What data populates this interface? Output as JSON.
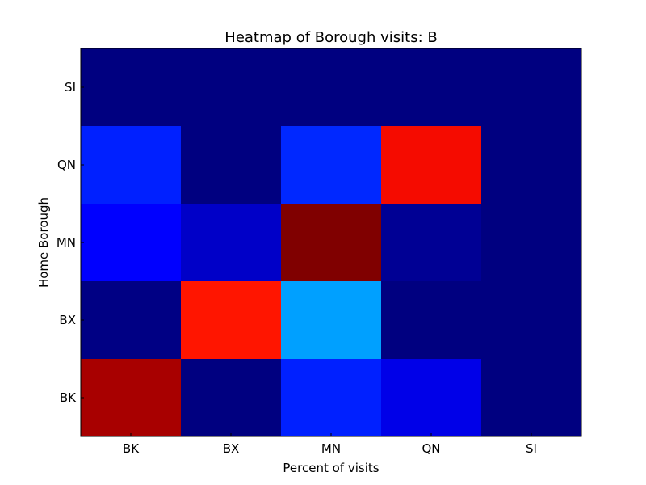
{
  "chart_data": {
    "type": "heatmap",
    "title": "Heatmap of Borough visits: B",
    "xlabel": "Percent of visits",
    "ylabel": "Home Borough",
    "x_categories": [
      "BK",
      "BX",
      "MN",
      "QN",
      "SI"
    ],
    "y_categories": [
      "BK",
      "BX",
      "MN",
      "QN",
      "SI"
    ],
    "colormap": "jet",
    "grid": false,
    "legend": "none",
    "cells": [
      {
        "row": "BK",
        "col": "BK",
        "value": 0.91,
        "color": "#a80000"
      },
      {
        "row": "BK",
        "col": "BX",
        "value": 0.0,
        "color": "#000080"
      },
      {
        "row": "BK",
        "col": "MN",
        "value": 0.24,
        "color": "#0020ff"
      },
      {
        "row": "BK",
        "col": "QN",
        "value": 0.17,
        "color": "#0000e8"
      },
      {
        "row": "BK",
        "col": "SI",
        "value": 0.0,
        "color": "#000080"
      },
      {
        "row": "BX",
        "col": "BK",
        "value": 0.01,
        "color": "#000084"
      },
      {
        "row": "BX",
        "col": "BX",
        "value": 0.79,
        "color": "#ff1500"
      },
      {
        "row": "BX",
        "col": "MN",
        "value": 0.34,
        "color": "#00a0ff"
      },
      {
        "row": "BX",
        "col": "QN",
        "value": 0.0,
        "color": "#000080"
      },
      {
        "row": "BX",
        "col": "SI",
        "value": 0.0,
        "color": "#000080"
      },
      {
        "row": "MN",
        "col": "BK",
        "value": 0.22,
        "color": "#0000ff"
      },
      {
        "row": "MN",
        "col": "BX",
        "value": 0.14,
        "color": "#0000c8"
      },
      {
        "row": "MN",
        "col": "MN",
        "value": 1.0,
        "color": "#800000"
      },
      {
        "row": "MN",
        "col": "QN",
        "value": 0.07,
        "color": "#000094"
      },
      {
        "row": "MN",
        "col": "SI",
        "value": 0.0,
        "color": "#000080"
      },
      {
        "row": "QN",
        "col": "BK",
        "value": 0.24,
        "color": "#0020ff"
      },
      {
        "row": "QN",
        "col": "BX",
        "value": 0.0,
        "color": "#000080"
      },
      {
        "row": "QN",
        "col": "MN",
        "value": 0.26,
        "color": "#0028ff"
      },
      {
        "row": "QN",
        "col": "QN",
        "value": 0.81,
        "color": "#f50b00"
      },
      {
        "row": "QN",
        "col": "SI",
        "value": 0.0,
        "color": "#000080"
      },
      {
        "row": "SI",
        "col": "BK",
        "value": 0.0,
        "color": "#000080"
      },
      {
        "row": "SI",
        "col": "BX",
        "value": 0.0,
        "color": "#000080"
      },
      {
        "row": "SI",
        "col": "MN",
        "value": 0.0,
        "color": "#000080"
      },
      {
        "row": "SI",
        "col": "QN",
        "value": 0.0,
        "color": "#000080"
      },
      {
        "row": "SI",
        "col": "SI",
        "value": 0.0,
        "color": "#000080"
      }
    ]
  }
}
